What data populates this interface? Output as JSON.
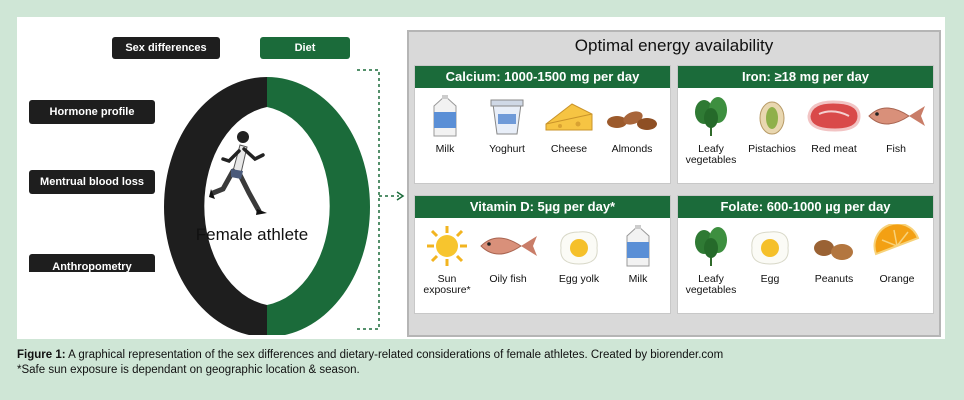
{
  "tags": {
    "sex": "Sex differences",
    "diet": "Diet"
  },
  "left_labels": [
    "Hormone profile",
    "Mentrual blood loss",
    "Anthropometry"
  ],
  "center": "Female athlete",
  "panel_title": "Optimal energy availability",
  "boxes": [
    {
      "title": "Calcium: 1000-1500 mg per day",
      "items": [
        "Milk",
        "Yoghurt",
        "Cheese",
        "Almonds"
      ]
    },
    {
      "title": "Iron: ≥18 mg per day",
      "items": [
        "Leafy vegetables",
        "Pistachios",
        "Red meat",
        "Fish"
      ]
    },
    {
      "title": "Vitamin D: 5µg per day*",
      "items": [
        "Sun exposure*",
        "Oily fish",
        "Egg yolk",
        "Milk"
      ]
    },
    {
      "title": "Folate: 600-1000 µg per day",
      "items": [
        "Leafy vegetables",
        "Egg",
        "Peanuts",
        "Orange"
      ]
    }
  ],
  "caption": {
    "label": "Figure 1:",
    "text": " A graphical representation of the sex differences and dietary-related considerations of female athletes. Created by biorender.com",
    "note": "*Safe sun exposure is dependant on geographic location & season."
  },
  "colors": {
    "green": "#1b6b3a",
    "dark": "#1e1e1e",
    "background": "#cfe6d6"
  }
}
